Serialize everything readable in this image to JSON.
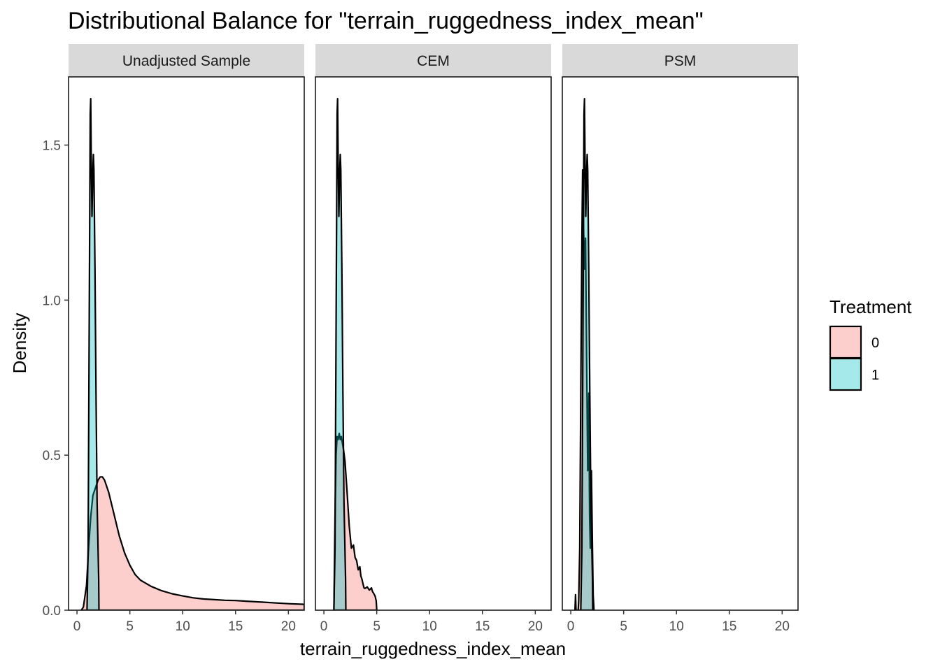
{
  "chart_data": {
    "type": "area",
    "chart_subtype": "faceted density plot",
    "title": "Distributional Balance for \"terrain_ruggedness_index_mean\"",
    "xlabel": "terrain_ruggedness_index_mean",
    "ylabel": "Density",
    "xlim": [
      -0.8,
      21.5
    ],
    "ylim": [
      0,
      1.72
    ],
    "x_ticks": [
      0,
      5,
      10,
      15,
      20
    ],
    "x_tick_labels": [
      "0",
      "5",
      "10",
      "15",
      "20"
    ],
    "y_ticks": [
      0.0,
      0.5,
      1.0,
      1.5
    ],
    "y_tick_labels": [
      "0.0",
      "0.5",
      "1.0",
      "1.5"
    ],
    "grid": false,
    "legend": {
      "title": "Treatment",
      "position": "right",
      "entries": [
        {
          "label": "0",
          "color": "#F8766D"
        },
        {
          "label": "1",
          "color": "#00BFC4"
        }
      ]
    },
    "fill_alpha": 0.35,
    "facets": [
      {
        "label": "Unadjusted Sample",
        "series": [
          {
            "name": "0",
            "color": "#F8766D",
            "points": [
              [
                0.4,
                0.0
              ],
              [
                0.6,
                0.01
              ],
              [
                0.9,
                0.08
              ],
              [
                1.1,
                0.2
              ],
              [
                1.3,
                0.3
              ],
              [
                1.5,
                0.37
              ],
              [
                1.8,
                0.4
              ],
              [
                2.0,
                0.42
              ],
              [
                2.2,
                0.43
              ],
              [
                2.4,
                0.43
              ],
              [
                2.6,
                0.42
              ],
              [
                3.0,
                0.38
              ],
              [
                3.5,
                0.31
              ],
              [
                4.0,
                0.24
              ],
              [
                4.5,
                0.185
              ],
              [
                5.0,
                0.145
              ],
              [
                5.5,
                0.115
              ],
              [
                6.0,
                0.097
              ],
              [
                7.0,
                0.077
              ],
              [
                8.0,
                0.063
              ],
              [
                9.0,
                0.053
              ],
              [
                10.0,
                0.046
              ],
              [
                11.0,
                0.04
              ],
              [
                12.0,
                0.036
              ],
              [
                13.0,
                0.034
              ],
              [
                14.0,
                0.032
              ],
              [
                15.0,
                0.031
              ],
              [
                16.0,
                0.029
              ],
              [
                17.0,
                0.027
              ],
              [
                18.0,
                0.025
              ],
              [
                19.0,
                0.023
              ],
              [
                20.0,
                0.021
              ],
              [
                21.5,
                0.019
              ]
            ]
          },
          {
            "name": "1",
            "color": "#00BFC4",
            "points": [
              [
                0.95,
                0.0
              ],
              [
                1.05,
                0.2
              ],
              [
                1.15,
                0.9
              ],
              [
                1.25,
                1.6
              ],
              [
                1.3,
                1.65
              ],
              [
                1.35,
                1.45
              ],
              [
                1.42,
                1.27
              ],
              [
                1.5,
                1.42
              ],
              [
                1.55,
                1.47
              ],
              [
                1.6,
                1.42
              ],
              [
                1.7,
                1.1
              ],
              [
                1.8,
                0.7
              ],
              [
                1.9,
                0.35
              ],
              [
                2.05,
                0.1
              ],
              [
                2.08,
                0.0
              ]
            ]
          }
        ]
      },
      {
        "label": "CEM",
        "series": [
          {
            "name": "0",
            "color": "#F8766D",
            "points": [
              [
                0.95,
                0.0
              ],
              [
                1.05,
                0.3
              ],
              [
                1.15,
                0.5
              ],
              [
                1.25,
                0.56
              ],
              [
                1.35,
                0.55
              ],
              [
                1.45,
                0.57
              ],
              [
                1.55,
                0.55
              ],
              [
                1.65,
                0.56
              ],
              [
                1.75,
                0.54
              ],
              [
                1.85,
                0.52
              ],
              [
                2.0,
                0.48
              ],
              [
                2.2,
                0.38
              ],
              [
                2.4,
                0.27
              ],
              [
                2.6,
                0.2
              ],
              [
                2.8,
                0.21
              ],
              [
                2.95,
                0.17
              ],
              [
                3.1,
                0.16
              ],
              [
                3.25,
                0.13
              ],
              [
                3.4,
                0.14
              ],
              [
                3.5,
                0.11
              ],
              [
                3.6,
                0.1
              ],
              [
                3.7,
                0.085
              ],
              [
                3.8,
                0.072
              ],
              [
                3.9,
                0.07
              ],
              [
                4.1,
                0.075
              ],
              [
                4.3,
                0.065
              ],
              [
                4.5,
                0.072
              ],
              [
                4.6,
                0.06
              ],
              [
                4.7,
                0.055
              ],
              [
                4.85,
                0.045
              ],
              [
                4.95,
                0.03
              ],
              [
                5.0,
                0.0
              ]
            ]
          },
          {
            "name": "1",
            "color": "#00BFC4",
            "points": [
              [
                0.95,
                0.0
              ],
              [
                1.05,
                0.2
              ],
              [
                1.15,
                0.9
              ],
              [
                1.25,
                1.6
              ],
              [
                1.3,
                1.65
              ],
              [
                1.35,
                1.45
              ],
              [
                1.42,
                1.27
              ],
              [
                1.5,
                1.42
              ],
              [
                1.55,
                1.47
              ],
              [
                1.6,
                1.42
              ],
              [
                1.7,
                1.1
              ],
              [
                1.8,
                0.7
              ],
              [
                1.9,
                0.35
              ],
              [
                2.05,
                0.1
              ],
              [
                2.08,
                0.0
              ]
            ]
          }
        ]
      },
      {
        "label": "PSM",
        "series": [
          {
            "name": "0",
            "color": "#F8766D",
            "points": [
              [
                0.4,
                0.0
              ],
              [
                0.45,
                0.05
              ],
              [
                0.5,
                0.0
              ],
              [
                0.7,
                0.0
              ],
              [
                0.75,
                0.03
              ],
              [
                0.85,
                0.2
              ],
              [
                0.95,
                0.7
              ],
              [
                1.05,
                1.2
              ],
              [
                1.12,
                1.42
              ],
              [
                1.2,
                1.25
              ],
              [
                1.3,
                1.1
              ],
              [
                1.4,
                1.2
              ],
              [
                1.5,
                0.8
              ],
              [
                1.6,
                0.45
              ],
              [
                1.7,
                0.7
              ],
              [
                1.78,
                0.3
              ],
              [
                1.85,
                0.2
              ],
              [
                1.95,
                0.45
              ],
              [
                2.05,
                0.2
              ],
              [
                2.12,
                0.05
              ],
              [
                2.2,
                0.0
              ]
            ]
          },
          {
            "name": "1",
            "color": "#00BFC4",
            "points": [
              [
                0.95,
                0.0
              ],
              [
                1.05,
                0.2
              ],
              [
                1.15,
                0.9
              ],
              [
                1.25,
                1.6
              ],
              [
                1.3,
                1.65
              ],
              [
                1.35,
                1.45
              ],
              [
                1.42,
                1.27
              ],
              [
                1.5,
                1.42
              ],
              [
                1.55,
                1.47
              ],
              [
                1.6,
                1.42
              ],
              [
                1.7,
                1.1
              ],
              [
                1.8,
                0.7
              ],
              [
                1.9,
                0.35
              ],
              [
                2.05,
                0.1
              ],
              [
                2.08,
                0.0
              ]
            ]
          }
        ]
      }
    ]
  }
}
